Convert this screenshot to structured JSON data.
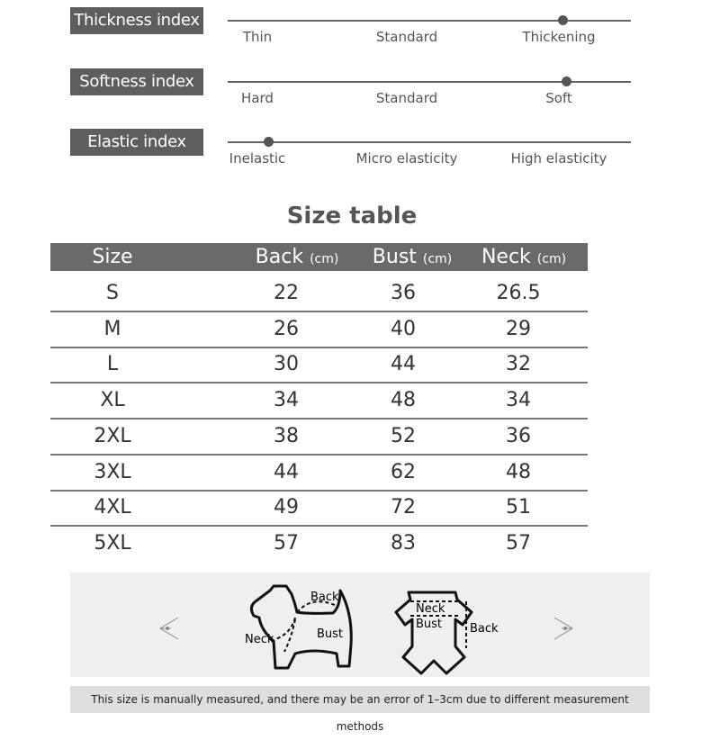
{
  "indices": [
    {
      "label": "Thickness index",
      "options": [
        "Thin",
        "Standard",
        "Thickening"
      ],
      "level": 0.83
    },
    {
      "label": "Softness index",
      "options": [
        "Hard",
        "Standard",
        "Soft"
      ],
      "level": 0.84
    },
    {
      "label": "Elastic index",
      "options": [
        "Inelastic",
        "Micro elasticity",
        "High elasticity"
      ],
      "level": 0.1
    }
  ],
  "size_table": {
    "title": "Size table",
    "headers": [
      {
        "name": "Size",
        "unit": ""
      },
      {
        "name": "Back",
        "unit": "(cm)"
      },
      {
        "name": "Bust",
        "unit": "(cm)"
      },
      {
        "name": "Neck",
        "unit": "(cm)"
      }
    ],
    "rows": [
      [
        "S",
        "22",
        "36",
        "26.5"
      ],
      [
        "M",
        "26",
        "40",
        "29"
      ],
      [
        "L",
        "30",
        "44",
        "32"
      ],
      [
        "XL",
        "34",
        "48",
        "34"
      ],
      [
        "2XL",
        "38",
        "52",
        "36"
      ],
      [
        "3XL",
        "44",
        "62",
        "48"
      ],
      [
        "4XL",
        "49",
        "72",
        "51"
      ],
      [
        "5XL",
        "57",
        "83",
        "57"
      ]
    ]
  },
  "diagram": {
    "dog_labels": {
      "back": "Back",
      "neck": "Neck",
      "bust": "Bust"
    },
    "garment_labels": {
      "neck": "Neck",
      "bust": "Bust",
      "back": "Back"
    }
  },
  "note": "This size is manually measured, and there may be an error of 1–3cm due to different measurement methods"
}
